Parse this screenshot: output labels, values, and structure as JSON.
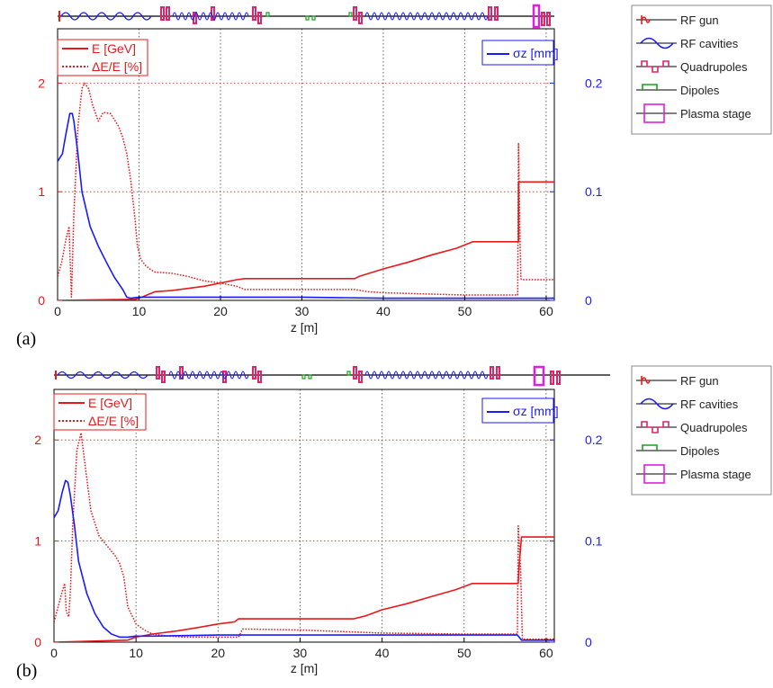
{
  "colors": {
    "energy": "#e8191c",
    "bunch_length": "#1a1aff",
    "rf_gun": "#e8191c",
    "rf_cavities": "#1a1aff",
    "quadrupoles": "#e0236a",
    "dipoles": "#1aa11a",
    "plasma_stage": "#e01ee0",
    "grid": "#555555",
    "red_grid": "#e8191c"
  },
  "beamline_legend": [
    {
      "label": "RF gun",
      "icon": "rf-gun-icon"
    },
    {
      "label": "RF cavities",
      "icon": "rf-cavities-icon"
    },
    {
      "label": "Quadrupoles",
      "icon": "quadrupoles-icon"
    },
    {
      "label": "Dipoles",
      "icon": "dipoles-icon"
    },
    {
      "label": "Plasma stage",
      "icon": "plasma-stage-icon"
    }
  ],
  "chart_data": [
    {
      "panel": "(a)",
      "type": "line",
      "xlabel": "z [m]",
      "xlim": [
        0,
        61
      ],
      "xticks": [
        0,
        10,
        20,
        30,
        40,
        50,
        60
      ],
      "ylim_left": [
        0,
        2.5
      ],
      "yticks_left": [
        0,
        1,
        2
      ],
      "ylim_right": [
        0,
        0.25
      ],
      "yticks_right": [
        0,
        0.1,
        0.2
      ],
      "legend_left": [
        "E [GeV]",
        "ΔE/E [%]"
      ],
      "legend_right": "σz [mm]",
      "series": [
        {
          "name": "E [GeV]",
          "axis": "left",
          "style": "solid",
          "color_key": "energy",
          "x": [
            0,
            9.5,
            10,
            12,
            14,
            16,
            18,
            20,
            22,
            23,
            36.5,
            37,
            40,
            43,
            46,
            49,
            51,
            56.6,
            56.6,
            56.8,
            61
          ],
          "y": [
            0,
            0.01,
            0.02,
            0.08,
            0.09,
            0.11,
            0.13,
            0.16,
            0.19,
            0.2,
            0.2,
            0.22,
            0.29,
            0.35,
            0.42,
            0.48,
            0.54,
            0.54,
            1.09,
            1.09,
            1.09
          ]
        },
        {
          "name": "ΔE/E [%]",
          "axis": "left",
          "style": "dotted",
          "color_key": "energy",
          "x": [
            0,
            0.5,
            1,
            1.4,
            1.7,
            2.0,
            2.5,
            3,
            3.3,
            3.8,
            4.3,
            5,
            5.6,
            6.5,
            7.5,
            8,
            8.5,
            9,
            9.5,
            9.8,
            10.2,
            10.8,
            11.5,
            12,
            14,
            16,
            18,
            20,
            22,
            23,
            26,
            30,
            34,
            36.5,
            38,
            40,
            45,
            50,
            56.5,
            56.6,
            56.8,
            56.9,
            57,
            61
          ],
          "y": [
            0.22,
            0.35,
            0.55,
            0.68,
            0.03,
            0.8,
            1.6,
            1.95,
            2.0,
            1.95,
            1.8,
            1.65,
            1.73,
            1.72,
            1.6,
            1.5,
            1.35,
            1.1,
            0.75,
            0.5,
            0.38,
            0.32,
            0.28,
            0.26,
            0.25,
            0.22,
            0.18,
            0.16,
            0.13,
            0.1,
            0.1,
            0.1,
            0.1,
            0.1,
            0.08,
            0.07,
            0.06,
            0.05,
            0.05,
            1.45,
            0.5,
            0.2,
            0.19,
            0.19
          ]
        },
        {
          "name": "σz [mm]",
          "axis": "right",
          "style": "solid",
          "color_key": "bunch_length",
          "x": [
            0,
            0.6,
            1.0,
            1.5,
            1.8,
            2.0,
            2.5,
            3,
            4,
            5,
            6,
            7,
            8,
            8.5,
            9,
            10,
            12,
            20,
            30,
            40,
            50,
            56.5,
            57,
            61
          ],
          "y": [
            0.128,
            0.135,
            0.152,
            0.172,
            0.172,
            0.165,
            0.135,
            0.1,
            0.068,
            0.05,
            0.035,
            0.021,
            0.01,
            0.003,
            0.002,
            0.003,
            0.003,
            0.003,
            0.003,
            0.002,
            0.002,
            0.002,
            0.002,
            0.002
          ]
        }
      ]
    },
    {
      "panel": "(b)",
      "type": "line",
      "xlabel": "z [m]",
      "xlim": [
        0,
        61
      ],
      "xticks": [
        0,
        10,
        20,
        30,
        40,
        50,
        60
      ],
      "ylim_left": [
        0,
        2.5
      ],
      "yticks_left": [
        0,
        1,
        2
      ],
      "ylim_right": [
        0,
        0.25
      ],
      "yticks_right": [
        0,
        0.1,
        0.2
      ],
      "legend_left": [
        "E [GeV]",
        "ΔE/E [%]"
      ],
      "legend_right": "σz [mm]",
      "series": [
        {
          "name": "E [GeV]",
          "axis": "left",
          "style": "solid",
          "color_key": "energy",
          "x": [
            0,
            9,
            10,
            12,
            15,
            18,
            20,
            22,
            22.5,
            36.5,
            38,
            40,
            43,
            46,
            49,
            51,
            56.6,
            56.7,
            57,
            61
          ],
          "y": [
            0,
            0.02,
            0.05,
            0.08,
            0.11,
            0.15,
            0.18,
            0.2,
            0.23,
            0.23,
            0.26,
            0.32,
            0.38,
            0.45,
            0.52,
            0.58,
            0.58,
            0.75,
            1.04,
            1.04
          ]
        },
        {
          "name": "ΔE/E [%]",
          "axis": "left",
          "style": "dotted",
          "color_key": "energy",
          "x": [
            0,
            0.5,
            1,
            1.3,
            1.5,
            1.8,
            2.0,
            2.3,
            2.8,
            3.3,
            3.8,
            4.5,
            5.5,
            6.5,
            7.5,
            8,
            8.5,
            9,
            10,
            11,
            12,
            14,
            16,
            20,
            22.5,
            23,
            30,
            40,
            50,
            56.5,
            56.6,
            56.9,
            57.1,
            61
          ],
          "y": [
            0.2,
            0.35,
            0.5,
            0.58,
            0.3,
            0.25,
            0.5,
            1.2,
            1.9,
            2.07,
            1.75,
            1.3,
            1.05,
            0.95,
            0.85,
            0.78,
            0.65,
            0.35,
            0.18,
            0.12,
            0.08,
            0.06,
            0.05,
            0.05,
            0.05,
            0.13,
            0.12,
            0.09,
            0.08,
            0.08,
            1.15,
            0.7,
            0.03,
            0.03
          ]
        },
        {
          "name": "σz [mm]",
          "axis": "right",
          "style": "solid",
          "color_key": "bunch_length",
          "x": [
            0,
            0.5,
            1.0,
            1.4,
            1.7,
            2.0,
            2.5,
            3,
            4,
            5,
            6,
            7,
            8,
            9,
            10,
            12,
            20,
            30,
            40,
            50,
            56.5,
            57,
            61
          ],
          "y": [
            0.123,
            0.13,
            0.148,
            0.16,
            0.158,
            0.145,
            0.115,
            0.08,
            0.048,
            0.028,
            0.015,
            0.008,
            0.005,
            0.005,
            0.006,
            0.006,
            0.007,
            0.007,
            0.007,
            0.007,
            0.007,
            0.002,
            0.002
          ]
        }
      ]
    }
  ]
}
